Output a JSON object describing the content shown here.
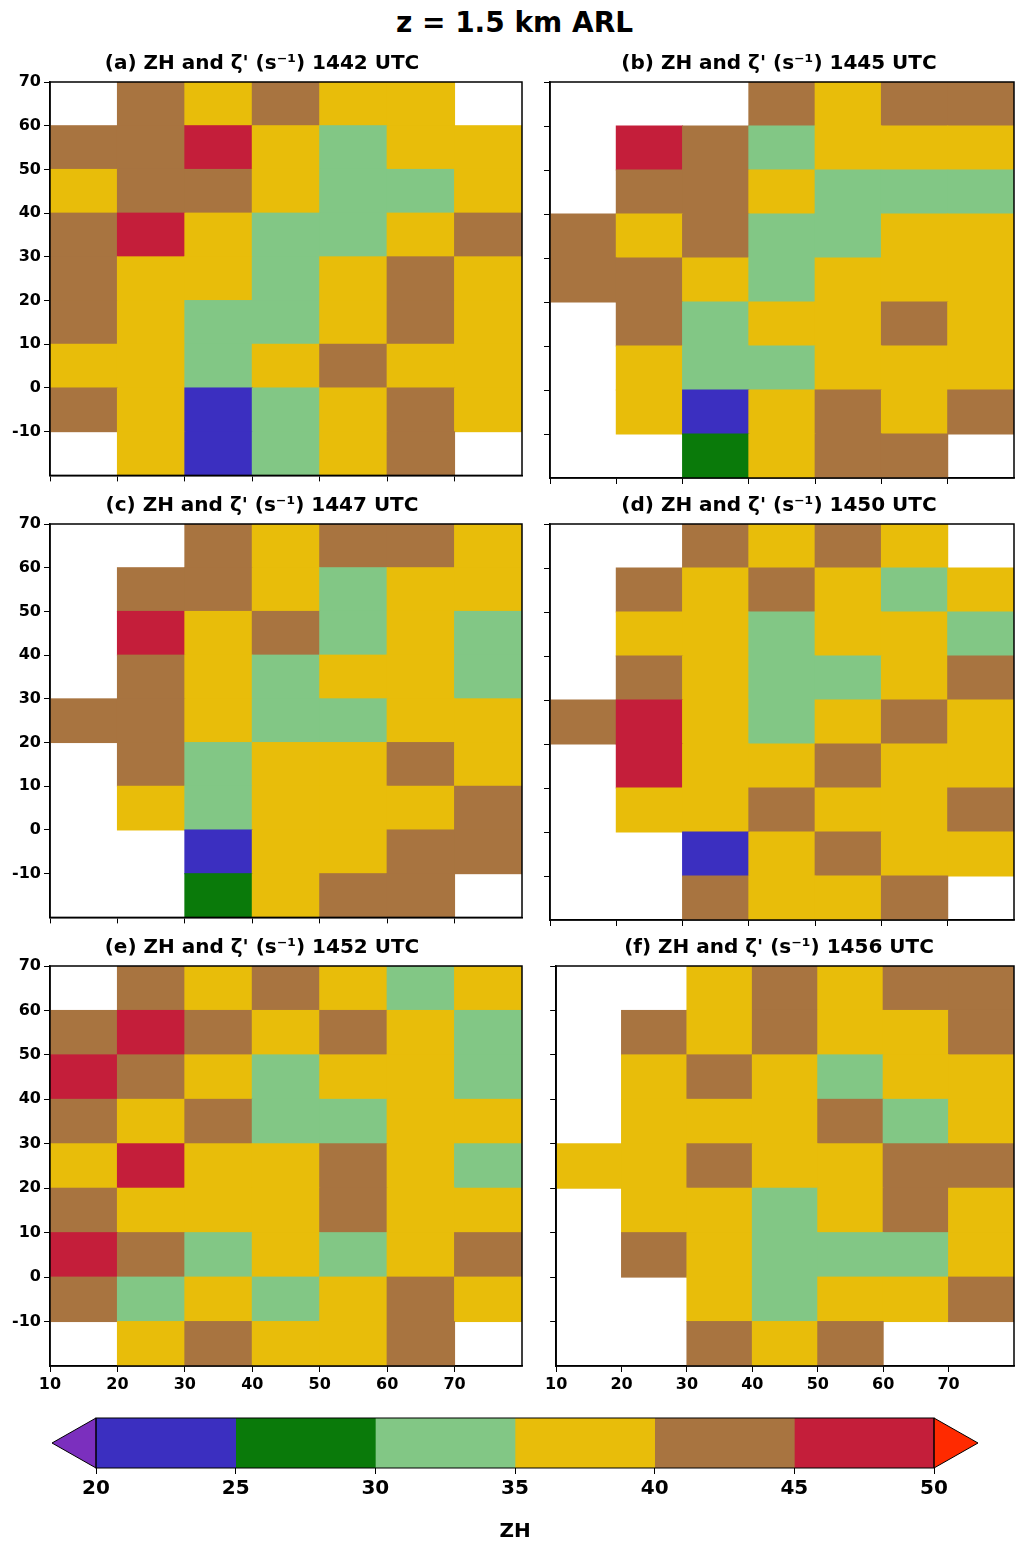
{
  "title": "z = 1.5 km ARL",
  "chart_data": [
    {
      "type": "heatmap",
      "title": "(a) ZH and ζ' (s⁻¹) 1442 UTC",
      "x": [
        15,
        25,
        35,
        45,
        55,
        65,
        75
      ],
      "y": [
        65,
        55,
        45,
        35,
        25,
        15,
        5,
        -5,
        -15
      ],
      "cells": [
        [
          null,
          42,
          38,
          42,
          38,
          37,
          null
        ],
        [
          40,
          42,
          45,
          38,
          33,
          38,
          37
        ],
        [
          35,
          43,
          42,
          37,
          33,
          32,
          38
        ],
        [
          42,
          46,
          38,
          34,
          32,
          38,
          42
        ],
        [
          42,
          38,
          37,
          33,
          38,
          42,
          38
        ],
        [
          40,
          38,
          33,
          30,
          38,
          42,
          38
        ],
        [
          38,
          37,
          33,
          37,
          42,
          38,
          38
        ],
        [
          40,
          38,
          23,
          34,
          38,
          42,
          38
        ],
        [
          null,
          38,
          22,
          33,
          38,
          42,
          null
        ]
      ],
      "xlim": [
        10,
        80
      ],
      "ylim": [
        -20,
        70
      ],
      "xticks": [
        10,
        20,
        30,
        40,
        50,
        60,
        70
      ],
      "yticks": [
        -10,
        0,
        10,
        20,
        30,
        40,
        50,
        60,
        70
      ],
      "grid": false,
      "tick_labels": "y"
    },
    {
      "type": "heatmap",
      "title": "(b) ZH and ζ' (s⁻¹) 1445 UTC",
      "x": [
        15,
        25,
        35,
        45,
        55,
        65,
        75
      ],
      "y": [
        65,
        55,
        45,
        35,
        25,
        15,
        5,
        -5,
        -15
      ],
      "cells": [
        [
          null,
          null,
          null,
          40,
          38,
          42,
          40
        ],
        [
          null,
          46,
          43,
          33,
          37,
          38,
          38
        ],
        [
          null,
          44,
          40,
          38,
          33,
          32,
          33
        ],
        [
          42,
          38,
          42,
          33,
          32,
          37,
          38
        ],
        [
          43,
          42,
          37,
          33,
          38,
          38,
          38
        ],
        [
          null,
          40,
          34,
          37,
          38,
          42,
          38
        ],
        [
          null,
          38,
          30,
          33,
          38,
          38,
          38
        ],
        [
          null,
          37,
          22,
          38,
          42,
          38,
          42
        ],
        [
          null,
          null,
          28,
          38,
          42,
          42,
          null
        ]
      ],
      "xlim": [
        10,
        80
      ],
      "ylim": [
        -20,
        70
      ],
      "xticks": [
        10,
        20,
        30,
        40,
        50,
        60,
        70
      ],
      "yticks": [
        -10,
        0,
        10,
        20,
        30,
        40,
        50,
        60,
        70
      ],
      "grid": false,
      "tick_labels": false
    },
    {
      "type": "heatmap",
      "title": "(c) ZH and ζ' (s⁻¹) 1447 UTC",
      "x": [
        15,
        25,
        35,
        45,
        55,
        65,
        75
      ],
      "y": [
        65,
        55,
        45,
        35,
        25,
        15,
        5,
        -5,
        -15
      ],
      "cells": [
        [
          null,
          null,
          43,
          38,
          40,
          42,
          38
        ],
        [
          null,
          44,
          40,
          38,
          33,
          38,
          38
        ],
        [
          null,
          46,
          38,
          42,
          33,
          37,
          33
        ],
        [
          null,
          42,
          38,
          33,
          38,
          37,
          33
        ],
        [
          42,
          40,
          38,
          33,
          33,
          38,
          38
        ],
        [
          null,
          43,
          33,
          38,
          38,
          42,
          38
        ],
        [
          null,
          37,
          33,
          38,
          38,
          38,
          42
        ],
        [
          null,
          null,
          24,
          37,
          38,
          42,
          42
        ],
        [
          null,
          null,
          28,
          38,
          42,
          42,
          null
        ]
      ],
      "xlim": [
        10,
        80
      ],
      "ylim": [
        -20,
        70
      ],
      "xticks": [
        10,
        20,
        30,
        40,
        50,
        60,
        70
      ],
      "yticks": [
        -10,
        0,
        10,
        20,
        30,
        40,
        50,
        60,
        70
      ],
      "grid": false,
      "tick_labels": "y"
    },
    {
      "type": "heatmap",
      "title": "(d) ZH and ζ' (s⁻¹) 1450 UTC",
      "x": [
        15,
        25,
        35,
        45,
        55,
        65,
        75
      ],
      "y": [
        65,
        55,
        45,
        35,
        25,
        15,
        5,
        -5,
        -15
      ],
      "cells": [
        [
          null,
          null,
          43,
          38,
          42,
          38,
          null
        ],
        [
          null,
          42,
          38,
          42,
          37,
          33,
          38
        ],
        [
          null,
          38,
          38,
          33,
          38,
          38,
          33
        ],
        [
          null,
          42,
          38,
          30,
          33,
          38,
          42
        ],
        [
          43,
          46,
          38,
          33,
          38,
          42,
          38
        ],
        [
          null,
          45,
          38,
          38,
          42,
          38,
          38
        ],
        [
          null,
          38,
          37,
          42,
          38,
          37,
          42
        ],
        [
          null,
          null,
          24,
          38,
          42,
          38,
          38
        ],
        [
          null,
          null,
          42,
          38,
          38,
          42,
          null
        ]
      ],
      "xlim": [
        10,
        80
      ],
      "ylim": [
        -20,
        70
      ],
      "xticks": [
        10,
        20,
        30,
        40,
        50,
        60,
        70
      ],
      "yticks": [
        -10,
        0,
        10,
        20,
        30,
        40,
        50,
        60,
        70
      ],
      "grid": false,
      "tick_labels": false
    },
    {
      "type": "heatmap",
      "title": "(e) ZH and ζ' (s⁻¹) 1452 UTC",
      "x": [
        15,
        25,
        35,
        45,
        55,
        65,
        75
      ],
      "y": [
        65,
        55,
        45,
        35,
        25,
        15,
        5,
        -5,
        -15
      ],
      "cells": [
        [
          null,
          42,
          38,
          42,
          38,
          33,
          38
        ],
        [
          42,
          46,
          42,
          38,
          42,
          38,
          33
        ],
        [
          46,
          42,
          38,
          33,
          38,
          38,
          33
        ],
        [
          42,
          38,
          42,
          33,
          33,
          38,
          38
        ],
        [
          38,
          46,
          38,
          38,
          42,
          38,
          33
        ],
        [
          42,
          38,
          38,
          38,
          43,
          38,
          38
        ],
        [
          46,
          42,
          33,
          38,
          33,
          38,
          42
        ],
        [
          42,
          30,
          38,
          33,
          38,
          42,
          38
        ],
        [
          null,
          38,
          42,
          38,
          38,
          42,
          null
        ]
      ],
      "xlim": [
        10,
        80
      ],
      "ylim": [
        -20,
        70
      ],
      "xticks": [
        10,
        20,
        30,
        40,
        50,
        60,
        70
      ],
      "yticks": [
        -10,
        0,
        10,
        20,
        30,
        40,
        50,
        60,
        70
      ],
      "grid": false,
      "tick_labels": true
    },
    {
      "type": "heatmap",
      "title": "(f) ZH and ζ' (s⁻¹) 1456 UTC",
      "x": [
        15,
        25,
        35,
        45,
        55,
        65,
        75
      ],
      "y": [
        65,
        55,
        45,
        35,
        25,
        15,
        5,
        -5,
        -15
      ],
      "cells": [
        [
          null,
          null,
          38,
          42,
          38,
          42,
          40
        ],
        [
          null,
          42,
          38,
          43,
          38,
          38,
          42
        ],
        [
          null,
          38,
          42,
          38,
          33,
          38,
          38
        ],
        [
          null,
          38,
          37,
          38,
          42,
          33,
          38
        ],
        [
          38,
          38,
          42,
          38,
          38,
          42,
          42
        ],
        [
          null,
          38,
          38,
          33,
          38,
          42,
          38
        ],
        [
          null,
          42,
          38,
          33,
          33,
          33,
          38
        ],
        [
          null,
          null,
          38,
          33,
          38,
          38,
          42
        ],
        [
          null,
          null,
          43,
          38,
          42,
          null,
          null
        ]
      ],
      "xlim": [
        10,
        80
      ],
      "ylim": [
        -20,
        70
      ],
      "xticks": [
        10,
        20,
        30,
        40,
        50,
        60,
        70
      ],
      "yticks": [
        -10,
        0,
        10,
        20,
        30,
        40,
        50,
        60,
        70
      ],
      "grid": false,
      "tick_labels": "x"
    }
  ],
  "colorbar": {
    "label": "ZH",
    "range": [
      20,
      50
    ],
    "ticks": [
      20,
      25,
      30,
      35,
      40,
      45,
      50
    ],
    "colors": [
      "#7b2fbe",
      "#3b2fc0",
      "#0a7a0a",
      "#82c785",
      "#e8bd0a",
      "#a87440",
      "#c41e3a",
      "#ff2a00"
    ]
  }
}
